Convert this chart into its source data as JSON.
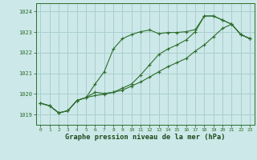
{
  "title": "Graphe pression niveau de la mer (hPa)",
  "background_color": "#cce8e8",
  "grid_color": "#aacece",
  "line_color": "#2d6e2d",
  "marker_color": "#2d6e2d",
  "xlim": [
    -0.5,
    23.5
  ],
  "ylim": [
    1018.5,
    1024.4
  ],
  "xticks": [
    0,
    1,
    2,
    3,
    4,
    5,
    6,
    7,
    8,
    9,
    10,
    11,
    12,
    13,
    14,
    15,
    16,
    17,
    18,
    19,
    20,
    21,
    22,
    23
  ],
  "yticks": [
    1019,
    1020,
    1021,
    1022,
    1023,
    1024
  ],
  "series": [
    [
      1019.55,
      1019.42,
      1019.08,
      1019.18,
      1019.68,
      1019.82,
      1020.48,
      1021.08,
      1022.18,
      1022.68,
      1022.88,
      1023.02,
      1023.1,
      1022.92,
      1022.98,
      1022.98,
      1023.02,
      1023.12,
      1023.78,
      1023.78,
      1023.58,
      1023.38,
      1022.88,
      1022.68
    ],
    [
      1019.55,
      1019.42,
      1019.08,
      1019.18,
      1019.68,
      1019.82,
      1020.08,
      1020.02,
      1020.08,
      1020.28,
      1020.48,
      1020.92,
      1021.42,
      1021.92,
      1022.18,
      1022.38,
      1022.62,
      1023.02,
      1023.78,
      1023.78,
      1023.58,
      1023.38,
      1022.88,
      1022.68
    ],
    [
      1019.55,
      1019.42,
      1019.08,
      1019.18,
      1019.68,
      1019.82,
      1019.92,
      1019.98,
      1020.08,
      1020.18,
      1020.38,
      1020.58,
      1020.82,
      1021.08,
      1021.32,
      1021.52,
      1021.72,
      1022.08,
      1022.38,
      1022.78,
      1023.18,
      1023.38,
      1022.88,
      1022.68
    ]
  ]
}
